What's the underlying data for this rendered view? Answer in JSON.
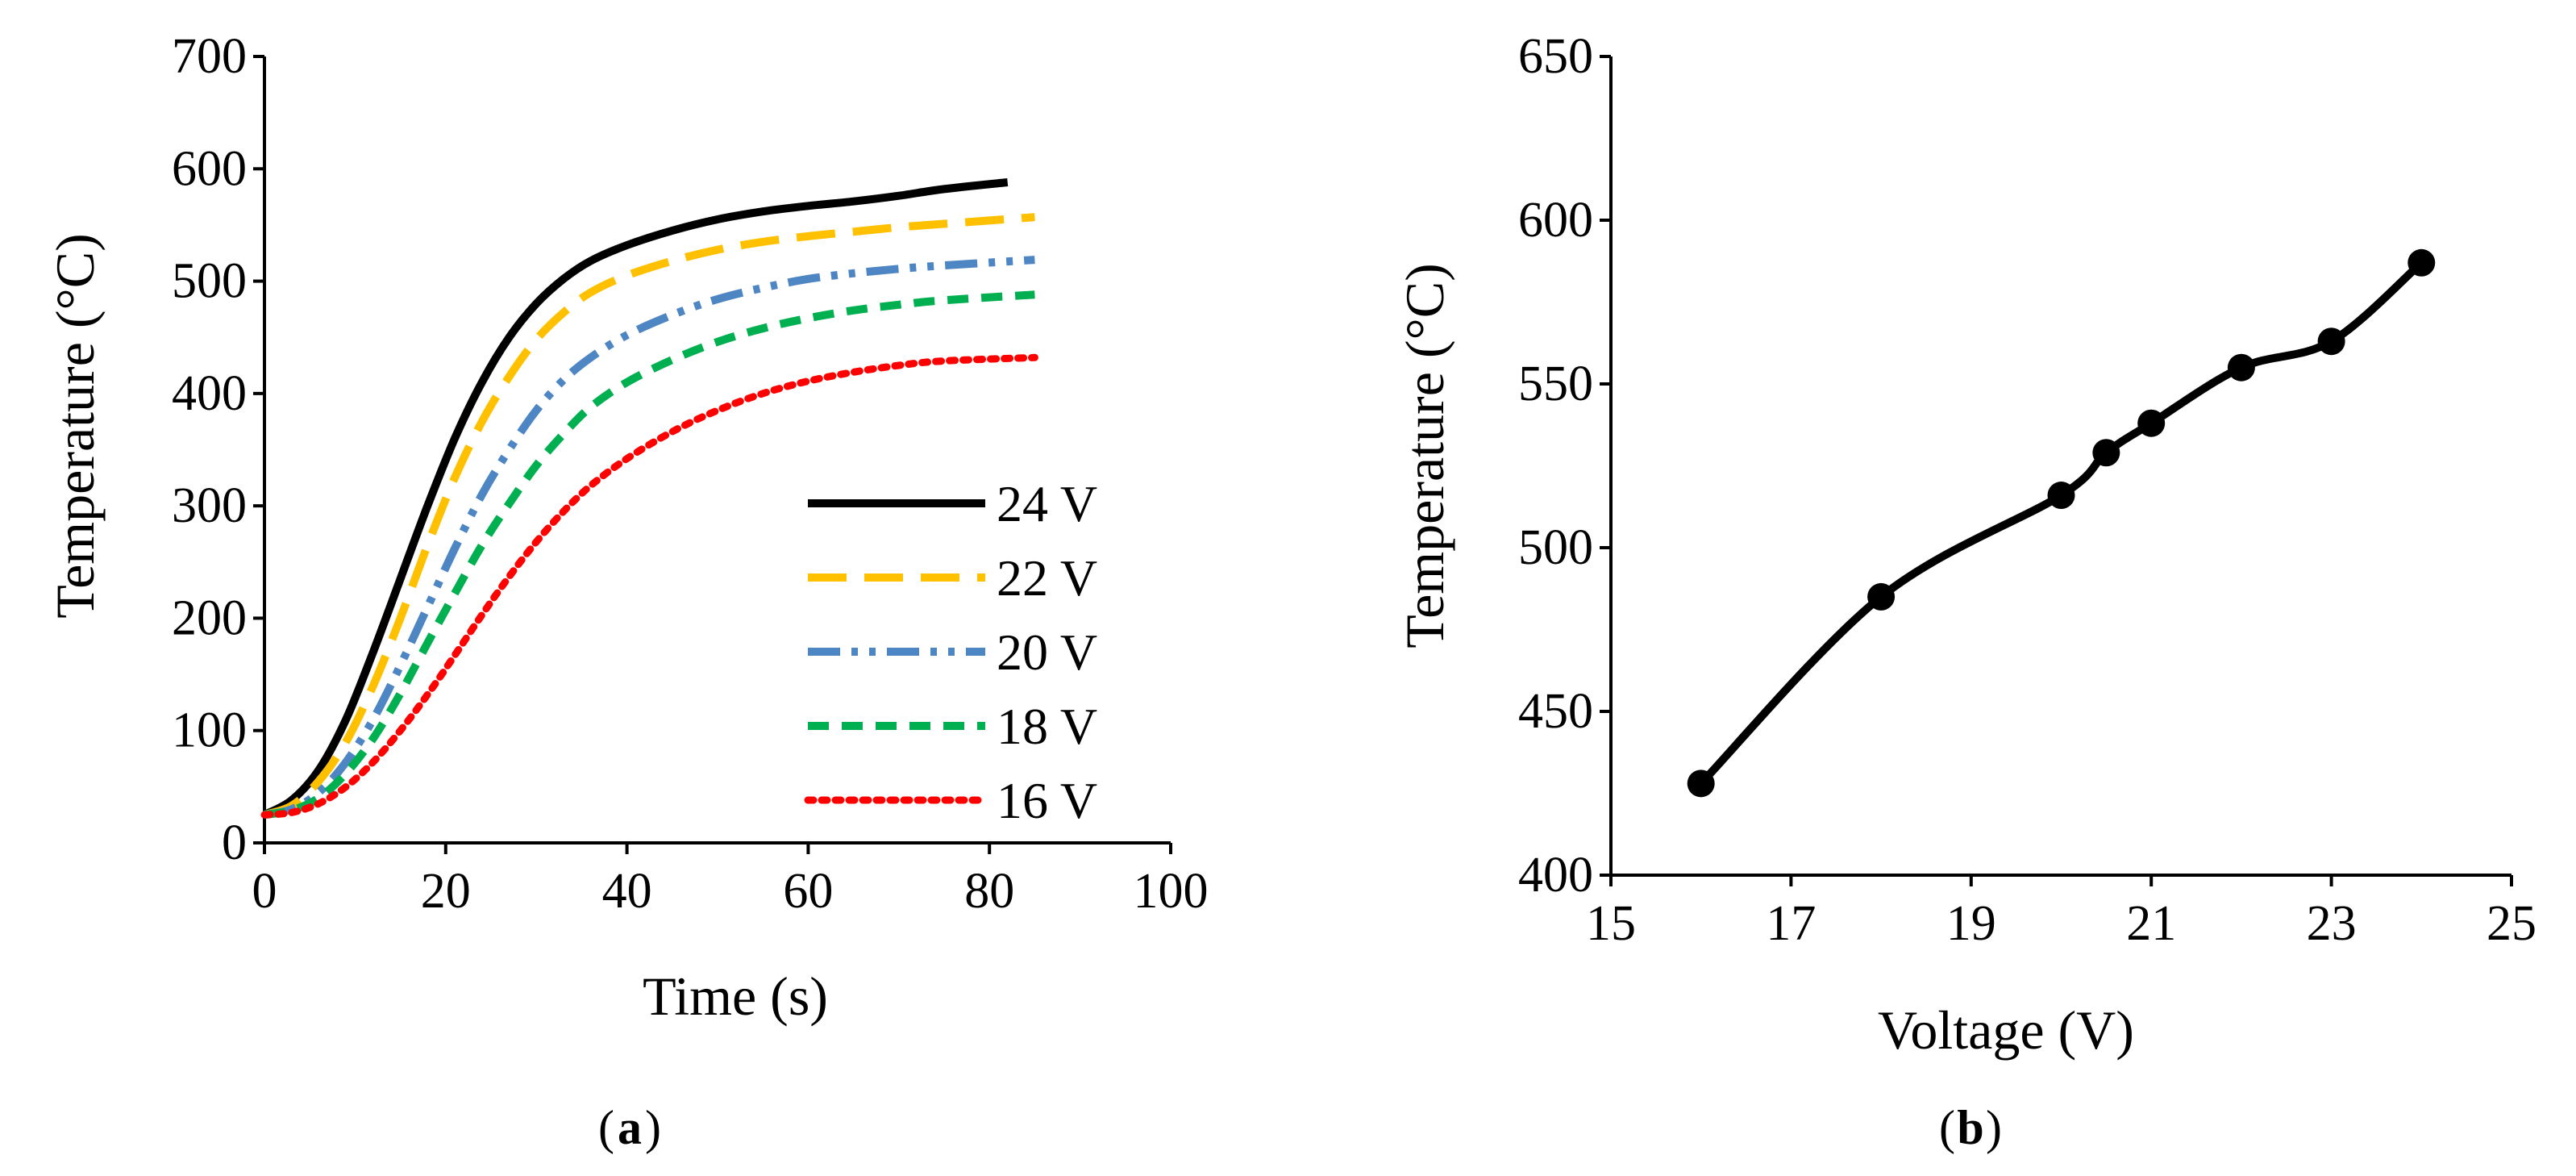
{
  "chart_data": [
    {
      "type": "line",
      "panel_label": "a",
      "xlabel": "Time (s)",
      "ylabel": "Temperature (°C)",
      "xlim": [
        0,
        100
      ],
      "ylim": [
        0,
        700
      ],
      "xticks": [
        0,
        20,
        40,
        60,
        80,
        100
      ],
      "yticks": [
        0,
        100,
        200,
        300,
        400,
        500,
        600,
        700
      ],
      "legend_position": "bottom-right",
      "series": [
        {
          "name": "24 V",
          "color": "#000000",
          "style": "solid",
          "x": [
            0,
            3,
            6,
            9,
            12,
            15,
            18,
            21,
            24,
            27,
            30,
            33,
            36,
            40,
            45,
            50,
            55,
            60,
            65,
            70,
            75,
            82
          ],
          "y": [
            25,
            38,
            65,
            110,
            170,
            235,
            300,
            360,
            410,
            450,
            480,
            502,
            518,
            532,
            545,
            555,
            562,
            567,
            571,
            576,
            582,
            588
          ]
        },
        {
          "name": "22 V",
          "color": "#FFC000",
          "style": "longdash",
          "x": [
            0,
            3,
            6,
            9,
            12,
            15,
            18,
            21,
            24,
            27,
            30,
            33,
            36,
            40,
            45,
            50,
            55,
            60,
            65,
            70,
            75,
            85
          ],
          "y": [
            25,
            33,
            55,
            90,
            140,
            200,
            265,
            325,
            375,
            415,
            448,
            472,
            490,
            505,
            518,
            528,
            535,
            540,
            544,
            548,
            551,
            557
          ]
        },
        {
          "name": "20 V",
          "color": "#4E86C4",
          "style": "dashdotdot",
          "x": [
            0,
            3,
            6,
            9,
            12,
            15,
            18,
            21,
            24,
            27,
            30,
            33,
            36,
            40,
            45,
            50,
            55,
            60,
            65,
            70,
            75,
            85
          ],
          "y": [
            25,
            30,
            45,
            72,
            110,
            158,
            210,
            262,
            310,
            350,
            385,
            412,
            432,
            452,
            470,
            484,
            494,
            502,
            507,
            511,
            514,
            519
          ]
        },
        {
          "name": "18 V",
          "color": "#00B050",
          "style": "dash",
          "x": [
            0,
            3,
            6,
            9,
            12,
            15,
            18,
            21,
            24,
            27,
            30,
            33,
            36,
            40,
            45,
            50,
            55,
            60,
            65,
            70,
            75,
            85
          ],
          "y": [
            25,
            29,
            40,
            62,
            93,
            133,
            178,
            222,
            265,
            302,
            336,
            364,
            388,
            410,
            430,
            446,
            458,
            467,
            474,
            479,
            483,
            488
          ]
        },
        {
          "name": "16 V",
          "color": "#FF0000",
          "style": "dot",
          "x": [
            0,
            3,
            6,
            9,
            12,
            15,
            18,
            21,
            24,
            27,
            30,
            33,
            36,
            40,
            45,
            50,
            55,
            60,
            65,
            70,
            75,
            85
          ],
          "y": [
            25,
            27,
            35,
            50,
            72,
            100,
            132,
            167,
            203,
            237,
            268,
            295,
            318,
            342,
            366,
            385,
            400,
            411,
            419,
            425,
            429,
            432
          ]
        }
      ]
    },
    {
      "type": "line",
      "panel_label": "b",
      "xlabel": "Voltage (V)",
      "ylabel": "Temperature (°C)",
      "xlim": [
        15,
        25
      ],
      "ylim": [
        400,
        650
      ],
      "xticks": [
        15,
        17,
        19,
        21,
        23,
        25
      ],
      "yticks": [
        400,
        450,
        500,
        550,
        600,
        650
      ],
      "series": [
        {
          "name": "Temperature",
          "color": "#000000",
          "style": "solid",
          "markers": true,
          "x": [
            16,
            18,
            20,
            20.5,
            21,
            22,
            23,
            24
          ],
          "y": [
            428,
            485,
            516,
            529,
            538,
            555,
            563,
            587
          ]
        }
      ]
    }
  ]
}
